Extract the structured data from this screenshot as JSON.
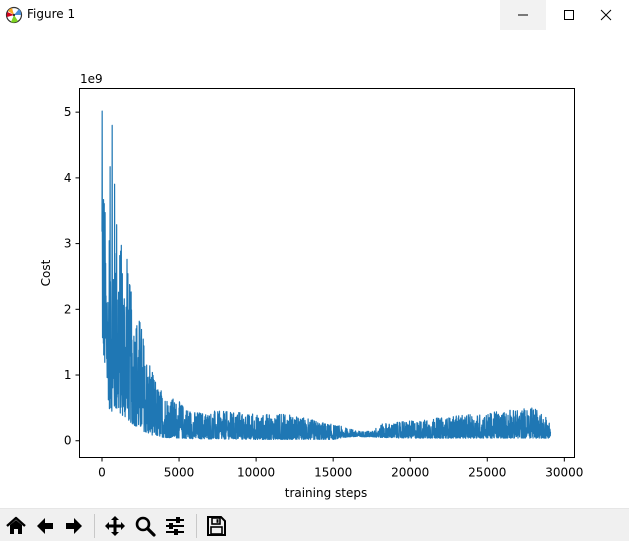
{
  "window": {
    "title": "Figure 1",
    "icon": "matplotlib-figure-icon"
  },
  "window_controls": [
    "minimize-icon",
    "maximize-icon",
    "close-icon"
  ],
  "toolbar": {
    "buttons": [
      {
        "name": "home-button",
        "icon": "home-icon"
      },
      {
        "name": "back-button",
        "icon": "back-arrow-icon"
      },
      {
        "name": "forward-button",
        "icon": "forward-arrow-icon"
      },
      {
        "name": "pan-button",
        "icon": "move-icon"
      },
      {
        "name": "zoom-button",
        "icon": "zoom-icon"
      },
      {
        "name": "configure-subplots-button",
        "icon": "sliders-icon"
      },
      {
        "name": "save-button",
        "icon": "save-icon"
      }
    ]
  },
  "chart_data": {
    "type": "line",
    "title": "",
    "xlabel": "training steps",
    "ylabel": "Cost",
    "y_offset_label": "1e9",
    "xlim": [
      -1460,
      30660
    ],
    "ylim": [
      -0.255,
      5.36
    ],
    "x_ticks": [
      0,
      5000,
      10000,
      15000,
      20000,
      25000,
      30000
    ],
    "x_tick_labels": [
      "0",
      "5000",
      "10000",
      "15000",
      "20000",
      "25000",
      "30000"
    ],
    "y_ticks": [
      0,
      1,
      2,
      3,
      4,
      5
    ],
    "y_tick_labels": [
      "0",
      "1",
      "2",
      "3",
      "4",
      "5"
    ],
    "grid": false,
    "line_color": "#1f77b4",
    "series": [
      {
        "x_range": [
          0,
          29100
        ],
        "upper_envelope": [
          [
            0,
            5.1
          ],
          [
            200,
            3.6
          ],
          [
            400,
            2.7
          ],
          [
            600,
            5.08
          ],
          [
            800,
            4.15
          ],
          [
            1200,
            3.0
          ],
          [
            1600,
            2.8
          ],
          [
            2000,
            2.1
          ],
          [
            2500,
            1.9
          ],
          [
            3000,
            1.2
          ],
          [
            3500,
            0.9
          ],
          [
            4000,
            0.75
          ],
          [
            5000,
            0.6
          ],
          [
            6000,
            0.45
          ],
          [
            8000,
            0.45
          ],
          [
            10000,
            0.4
          ],
          [
            12000,
            0.4
          ],
          [
            14000,
            0.3
          ],
          [
            15500,
            0.22
          ],
          [
            16500,
            0.15
          ],
          [
            17500,
            0.14
          ],
          [
            18000,
            0.25
          ],
          [
            20000,
            0.3
          ],
          [
            22000,
            0.35
          ],
          [
            24000,
            0.4
          ],
          [
            26000,
            0.45
          ],
          [
            28000,
            0.5
          ],
          [
            29100,
            0.3
          ]
        ],
        "lower_envelope": [
          [
            0,
            1.5
          ],
          [
            200,
            1.05
          ],
          [
            500,
            0.45
          ],
          [
            1000,
            0.45
          ],
          [
            1500,
            0.35
          ],
          [
            2000,
            0.25
          ],
          [
            3000,
            0.1
          ],
          [
            4000,
            0.05
          ],
          [
            6000,
            0.03
          ],
          [
            10000,
            0.02
          ],
          [
            15000,
            0.02
          ],
          [
            16000,
            0.06
          ],
          [
            17500,
            0.06
          ],
          [
            18000,
            0.05
          ],
          [
            20000,
            0.04
          ],
          [
            29100,
            0.04
          ]
        ]
      }
    ]
  }
}
